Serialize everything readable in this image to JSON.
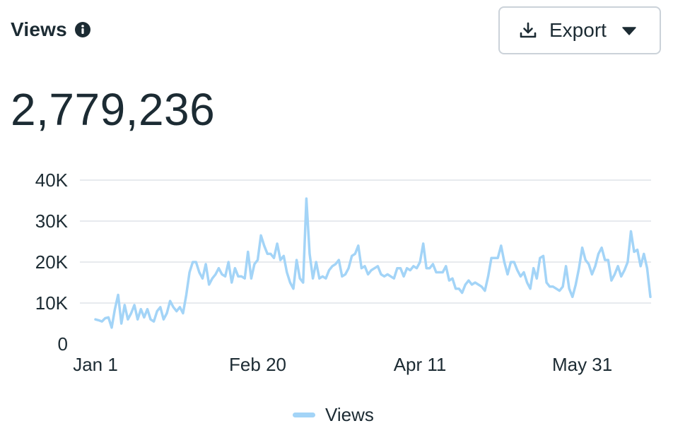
{
  "header": {
    "title": "Views",
    "info_icon": "info-circle-icon"
  },
  "export_button": {
    "label": "Export",
    "icon": "download-icon",
    "caret_icon": "caret-down-icon"
  },
  "total": "2,779,236",
  "legend": {
    "label": "Views",
    "color": "#a3d4f7"
  },
  "chart_data": {
    "type": "line",
    "title": "",
    "xlabel": "",
    "ylabel": "",
    "ylim": [
      0,
      40000
    ],
    "yticks": [
      0,
      10000,
      20000,
      30000,
      40000
    ],
    "ytick_labels": [
      "0",
      "10K",
      "20K",
      "30K",
      "40K"
    ],
    "xticks": [
      {
        "day": 1,
        "label": "Jan 1"
      },
      {
        "day": 51,
        "label": "Feb 20"
      },
      {
        "day": 101,
        "label": "Apr 11"
      },
      {
        "day": 151,
        "label": "May 31"
      }
    ],
    "grid": "horizontal",
    "legend_position": "bottom",
    "series": [
      {
        "name": "Views",
        "color": "#a3d4f7",
        "start_day": 1,
        "values": [
          6000,
          5800,
          5500,
          6300,
          6500,
          4000,
          8500,
          12000,
          5000,
          9500,
          6000,
          7500,
          9500,
          6000,
          8500,
          6500,
          8500,
          6000,
          5500,
          8000,
          9000,
          6000,
          7500,
          10500,
          9000,
          8000,
          9000,
          7500,
          12000,
          17500,
          20000,
          20000,
          17500,
          16000,
          19500,
          14500,
          16000,
          17000,
          18500,
          17000,
          16500,
          20000,
          15000,
          18500,
          16500,
          16500,
          16000,
          22500,
          16000,
          19500,
          20500,
          26500,
          24000,
          22000,
          22000,
          21000,
          24500,
          20500,
          21500,
          17500,
          15000,
          13500,
          20500,
          16000,
          15000,
          35500,
          22000,
          16000,
          20000,
          16000,
          16500,
          16000,
          18000,
          19000,
          19500,
          20500,
          16500,
          17000,
          18500,
          21500,
          22000,
          24000,
          18500,
          19000,
          17000,
          18000,
          18500,
          19000,
          17000,
          16500,
          17000,
          16500,
          16000,
          18500,
          18500,
          16500,
          18500,
          18000,
          19000,
          18500,
          20000,
          24500,
          18500,
          18500,
          19500,
          17500,
          17500,
          17500,
          19000,
          15500,
          16000,
          13500,
          13500,
          12500,
          14500,
          15500,
          14500,
          15000,
          14500,
          14000,
          13000,
          16500,
          21000,
          21000,
          21000,
          24000,
          20000,
          17000,
          20000,
          20000,
          18000,
          16500,
          17500,
          15000,
          13500,
          18500,
          16000,
          21000,
          21500,
          15000,
          14000,
          14000,
          13500,
          13000,
          14000,
          19000,
          13500,
          11500,
          14500,
          18500,
          23500,
          20500,
          19500,
          17000,
          19000,
          22000,
          23500,
          20500,
          20500,
          15500,
          17000,
          19000,
          16500,
          18000,
          20000,
          27500,
          22500,
          23000,
          19000,
          22000,
          18500,
          11500
        ]
      }
    ]
  }
}
